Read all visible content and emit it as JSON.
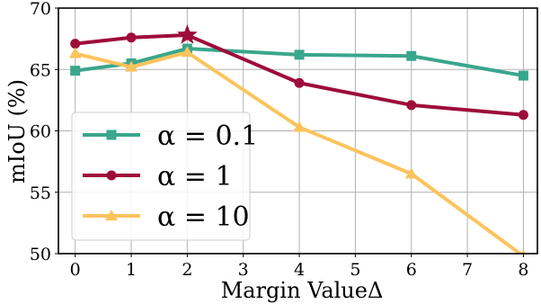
{
  "chart_data": {
    "type": "line",
    "xlabel": "Margin ValueΔ",
    "ylabel": "mIoU (%)",
    "xlim": [
      -0.3,
      8.25
    ],
    "ylim": [
      50,
      70
    ],
    "xticks": [
      "0",
      "1",
      "2",
      "3",
      "4",
      "5",
      "6",
      "7",
      "8"
    ],
    "yticks": [
      "50",
      "55",
      "60",
      "65",
      "70"
    ],
    "grid": true,
    "legend_position": "lower-left",
    "series": [
      {
        "name": "α = 0.1",
        "color": "#3aa68c",
        "marker": "square",
        "x": [
          0,
          1,
          2,
          4,
          6,
          8
        ],
        "y": [
          64.9,
          65.5,
          66.7,
          66.2,
          66.1,
          64.5
        ]
      },
      {
        "name": "α = 1",
        "color": "#9e0c3a",
        "marker": "circle",
        "x": [
          0,
          1,
          2,
          4,
          6,
          8
        ],
        "y": [
          67.1,
          67.6,
          67.8,
          63.9,
          62.1,
          61.3
        ]
      },
      {
        "name": "α = 10",
        "color": "#fcc35d",
        "marker": "triangle",
        "x": [
          0,
          1,
          2,
          4,
          6,
          8
        ],
        "y": [
          66.3,
          65.2,
          66.4,
          60.3,
          56.5,
          49.8
        ]
      }
    ],
    "highlight": {
      "series": "α = 1",
      "x": 2,
      "y": 67.8,
      "marker": "star"
    }
  }
}
